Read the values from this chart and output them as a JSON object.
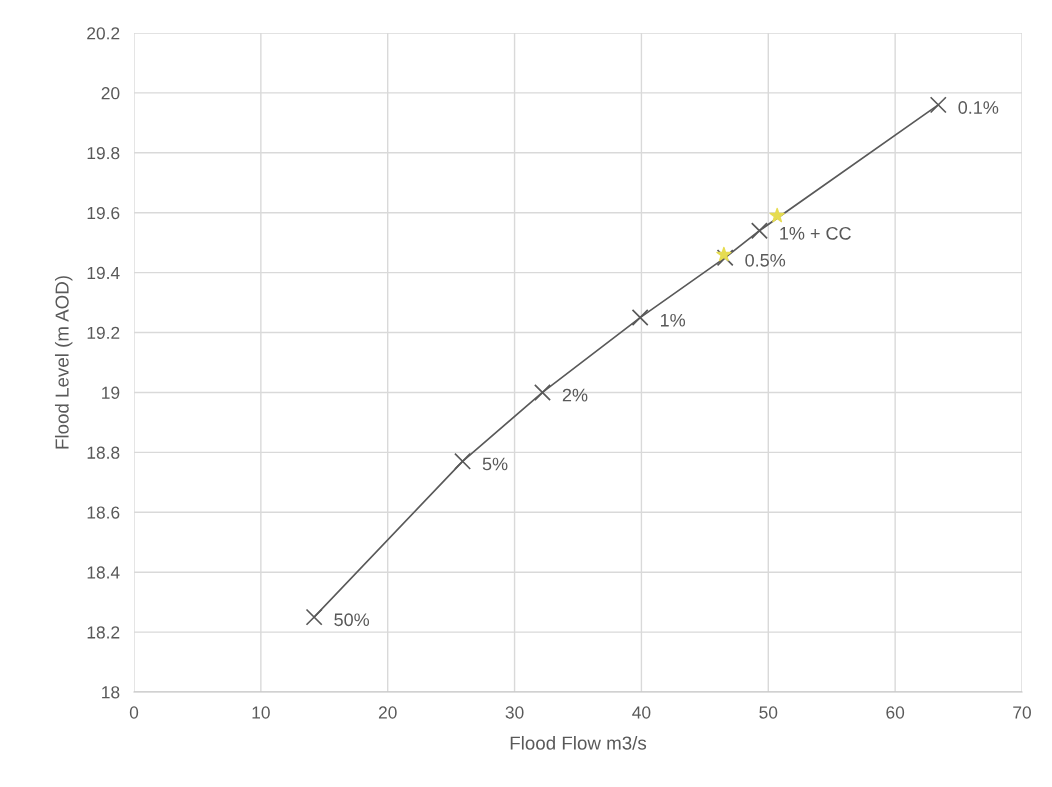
{
  "chart_data": {
    "type": "line",
    "xlabel": "Flood Flow m3/s",
    "ylabel": "Flood Level (m AOD)",
    "series": [
      {
        "color": "#595959",
        "marker": "cross",
        "x": [
          14.2,
          25.9,
          32.2,
          39.9,
          46.6,
          49.3,
          63.4
        ],
        "values": [
          18.25,
          18.77,
          19.0,
          19.25,
          19.45,
          19.54,
          19.96
        ]
      },
      {
        "type": "scatter",
        "color": "#e6dc50",
        "marker": "star",
        "x": [
          46.5,
          50.7
        ],
        "values": [
          19.46,
          19.59
        ]
      }
    ],
    "annotations": [
      {
        "text": "50%",
        "x": 14.2,
        "y": 18.25
      },
      {
        "text": "5%",
        "x": 25.9,
        "y": 18.77
      },
      {
        "text": "2%",
        "x": 32.2,
        "y": 19.0
      },
      {
        "text": "1%",
        "x": 39.9,
        "y": 19.25
      },
      {
        "text": "0.5%",
        "x": 46.6,
        "y": 19.45
      },
      {
        "text": "1% + CC",
        "x": 49.3,
        "y": 19.54
      },
      {
        "text": "0.1%",
        "x": 63.4,
        "y": 19.96
      }
    ],
    "xlim": [
      0,
      70
    ],
    "xticks": [
      0,
      10,
      20,
      30,
      40,
      50,
      60,
      70
    ],
    "ylim": [
      18,
      20.2
    ],
    "yticks": [
      18,
      18.2,
      18.4,
      18.6,
      18.8,
      19,
      19.2,
      19.4,
      19.6,
      19.8,
      20,
      20.2
    ],
    "grid": true,
    "legend": false
  }
}
